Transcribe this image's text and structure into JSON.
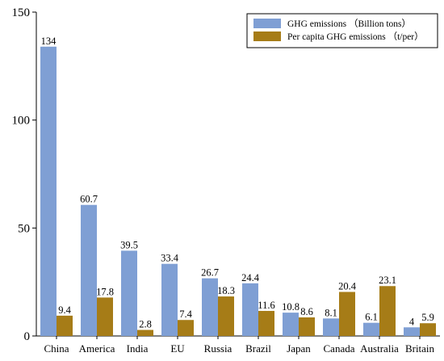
{
  "chart_data": {
    "type": "bar",
    "categories": [
      "China",
      "America",
      "India",
      "EU",
      "Russia",
      "Brazil",
      "Japan",
      "Canada",
      "Australia",
      "Britain"
    ],
    "series": [
      {
        "name": "GHG emissions  （Billion tons）",
        "color": "#7f9fd4",
        "values": [
          134,
          60.7,
          39.5,
          33.4,
          26.7,
          24.4,
          10.8,
          8.1,
          6.1,
          4
        ],
        "labels": [
          "134",
          "60.7",
          "39.5",
          "33.4",
          "26.7",
          "24.4",
          "10.8",
          "8.1",
          "6.1",
          "4"
        ]
      },
      {
        "name": "Per capita GHG emissions  （t/per）",
        "color": "#a67c17",
        "values": [
          9.4,
          17.8,
          2.8,
          7.4,
          18.3,
          11.6,
          8.6,
          20.4,
          23.1,
          5.9
        ],
        "labels": [
          "9.4",
          "17.8",
          "2.8",
          "7.4",
          "18.3",
          "11.6",
          "8.6",
          "20.4",
          "23.1",
          "5.9"
        ]
      }
    ],
    "title": "",
    "xlabel": "",
    "ylabel": "",
    "ylim": [
      0,
      150
    ],
    "yticks": [
      "0",
      "50",
      "100",
      "150"
    ],
    "legend_position": "top-right",
    "grid": false
  }
}
